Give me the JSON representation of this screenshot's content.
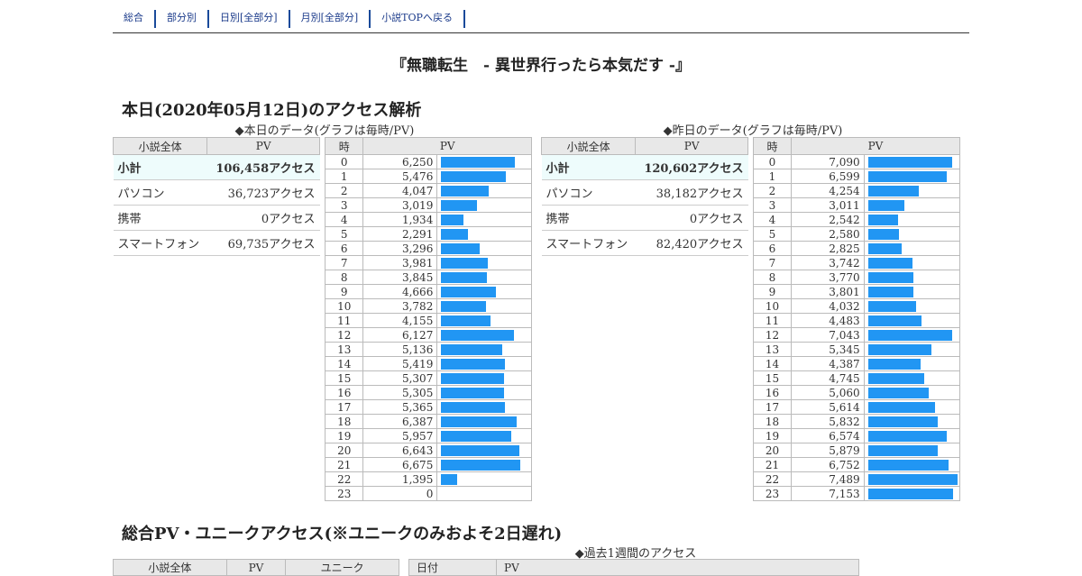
{
  "nav": [
    "総合",
    "部分別",
    "日別[全部分]",
    "月別[全部分]",
    "小説TOPへ戻る"
  ],
  "title": "『無職転生　- 異世界行ったら本気だす -』",
  "today_heading": "本日(2020年05月12日)のアクセス解析",
  "today_caption": "◆本日のデータ(グラフは毎時/PV)",
  "yesterday_caption": "◆昨日のデータ(グラフは毎時/PV)",
  "summary_headers": [
    "小説全体",
    "PV"
  ],
  "hour_headers": [
    "時",
    "PV"
  ],
  "today_summary": [
    {
      "label": "小計",
      "value": "106,458アクセス"
    },
    {
      "label": "パソコン",
      "value": "36,723アクセス"
    },
    {
      "label": "携帯",
      "value": "0アクセス"
    },
    {
      "label": "スマートフォン",
      "value": "69,735アクセス"
    }
  ],
  "yesterday_summary": [
    {
      "label": "小計",
      "value": "120,602アクセス"
    },
    {
      "label": "パソコン",
      "value": "38,182アクセス"
    },
    {
      "label": "携帯",
      "value": "0アクセス"
    },
    {
      "label": "スマートフォン",
      "value": "82,420アクセス"
    }
  ],
  "chart_data": [
    {
      "type": "bar",
      "title": "◆本日のデータ(グラフは毎時/PV)",
      "xlabel": "時",
      "ylabel": "PV",
      "categories": [
        0,
        1,
        2,
        3,
        4,
        5,
        6,
        7,
        8,
        9,
        10,
        11,
        12,
        13,
        14,
        15,
        16,
        17,
        18,
        19,
        20,
        21,
        22,
        23
      ],
      "values": [
        6250,
        5476,
        4047,
        3019,
        1934,
        2291,
        3296,
        3981,
        3845,
        4666,
        3782,
        4155,
        6127,
        5136,
        5419,
        5307,
        5305,
        5365,
        6387,
        5957,
        6643,
        6675,
        1395,
        0
      ],
      "display": [
        "6,250",
        "5,476",
        "4,047",
        "3,019",
        "1,934",
        "2,291",
        "3,296",
        "3,981",
        "3,845",
        "4,666",
        "3,782",
        "4,155",
        "6,127",
        "5,136",
        "5,419",
        "5,307",
        "5,305",
        "5,365",
        "6,387",
        "5,957",
        "6,643",
        "6,675",
        "1,395",
        "0"
      ]
    },
    {
      "type": "bar",
      "title": "◆昨日のデータ(グラフは毎時/PV)",
      "xlabel": "時",
      "ylabel": "PV",
      "categories": [
        0,
        1,
        2,
        3,
        4,
        5,
        6,
        7,
        8,
        9,
        10,
        11,
        12,
        13,
        14,
        15,
        16,
        17,
        18,
        19,
        20,
        21,
        22,
        23
      ],
      "values": [
        7090,
        6599,
        4254,
        3011,
        2542,
        2580,
        2825,
        3742,
        3770,
        3801,
        4032,
        4483,
        7043,
        5345,
        4387,
        4745,
        5060,
        5614,
        5832,
        6574,
        5879,
        6752,
        7489,
        7153
      ],
      "display": [
        "7,090",
        "6,599",
        "4,254",
        "3,011",
        "2,542",
        "2,580",
        "2,825",
        "3,742",
        "3,770",
        "3,801",
        "4,032",
        "4,483",
        "7,043",
        "5,345",
        "4,387",
        "4,745",
        "5,060",
        "5,614",
        "5,832",
        "6,574",
        "5,879",
        "6,752",
        "7,489",
        "7,153"
      ]
    }
  ],
  "bar_color": "#2196f3",
  "total_heading": "総合PV・ユニークアクセス(※ユニークのみおよそ2日遅れ)",
  "week_caption": "◆過去1週間のアクセス",
  "total_headers": [
    "小説全体",
    "PV",
    "ユニーク"
  ],
  "week_headers": [
    "日付",
    "PV"
  ]
}
